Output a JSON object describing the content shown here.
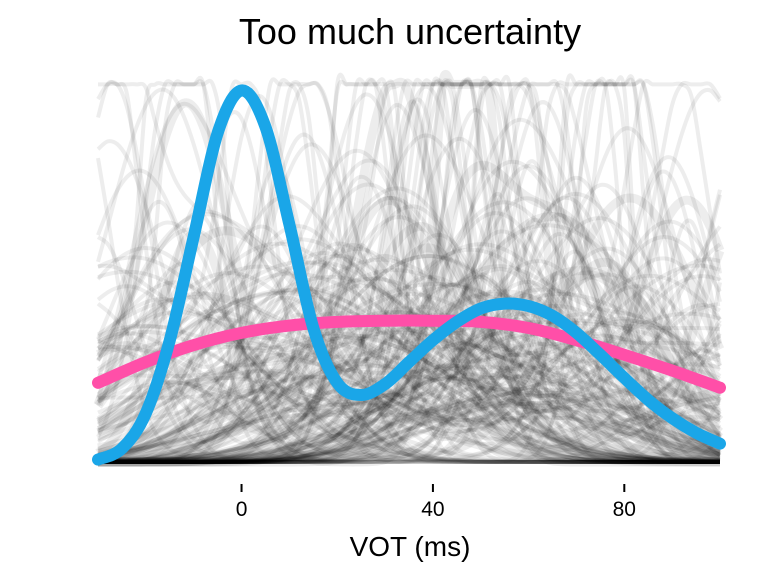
{
  "chart_data": {
    "type": "line",
    "title": "Too much uncertainty",
    "xlabel": "VOT (ms)",
    "ylabel": "",
    "xlim": [
      -30,
      100
    ],
    "ylim": [
      0,
      0.033
    ],
    "x_ticks": [
      0,
      40,
      80
    ],
    "y_axis_shown": false,
    "grid": false,
    "legend": "none",
    "background_curves": {
      "description_shown": false,
      "color": "#000000",
      "opacity": 0.07,
      "count_visible": 200
    },
    "series": [
      {
        "color": "#ff4fa8",
        "x": [
          -30,
          -20,
          -10,
          0,
          10,
          20,
          30,
          40,
          50,
          60,
          70,
          80,
          90,
          100
        ],
        "y": [
          0.0065,
          0.0082,
          0.0096,
          0.0106,
          0.0112,
          0.0115,
          0.0116,
          0.0116,
          0.0115,
          0.011,
          0.01,
          0.0088,
          0.0075,
          0.0061
        ]
      },
      {
        "color": "#1aa6e8",
        "x": [
          -30,
          -25,
          -20,
          -15,
          -10,
          -5,
          0,
          5,
          10,
          15,
          20,
          25,
          30,
          35,
          40,
          45,
          50,
          55,
          60,
          65,
          70,
          75,
          80,
          85,
          90,
          95,
          100
        ],
        "y": [
          0.0002,
          0.0011,
          0.004,
          0.01,
          0.0185,
          0.027,
          0.0305,
          0.0275,
          0.0195,
          0.011,
          0.0065,
          0.0055,
          0.0064,
          0.0082,
          0.01,
          0.0115,
          0.0126,
          0.013,
          0.0128,
          0.012,
          0.0106,
          0.0088,
          0.0069,
          0.0051,
          0.0036,
          0.0024,
          0.0015
        ]
      }
    ]
  }
}
